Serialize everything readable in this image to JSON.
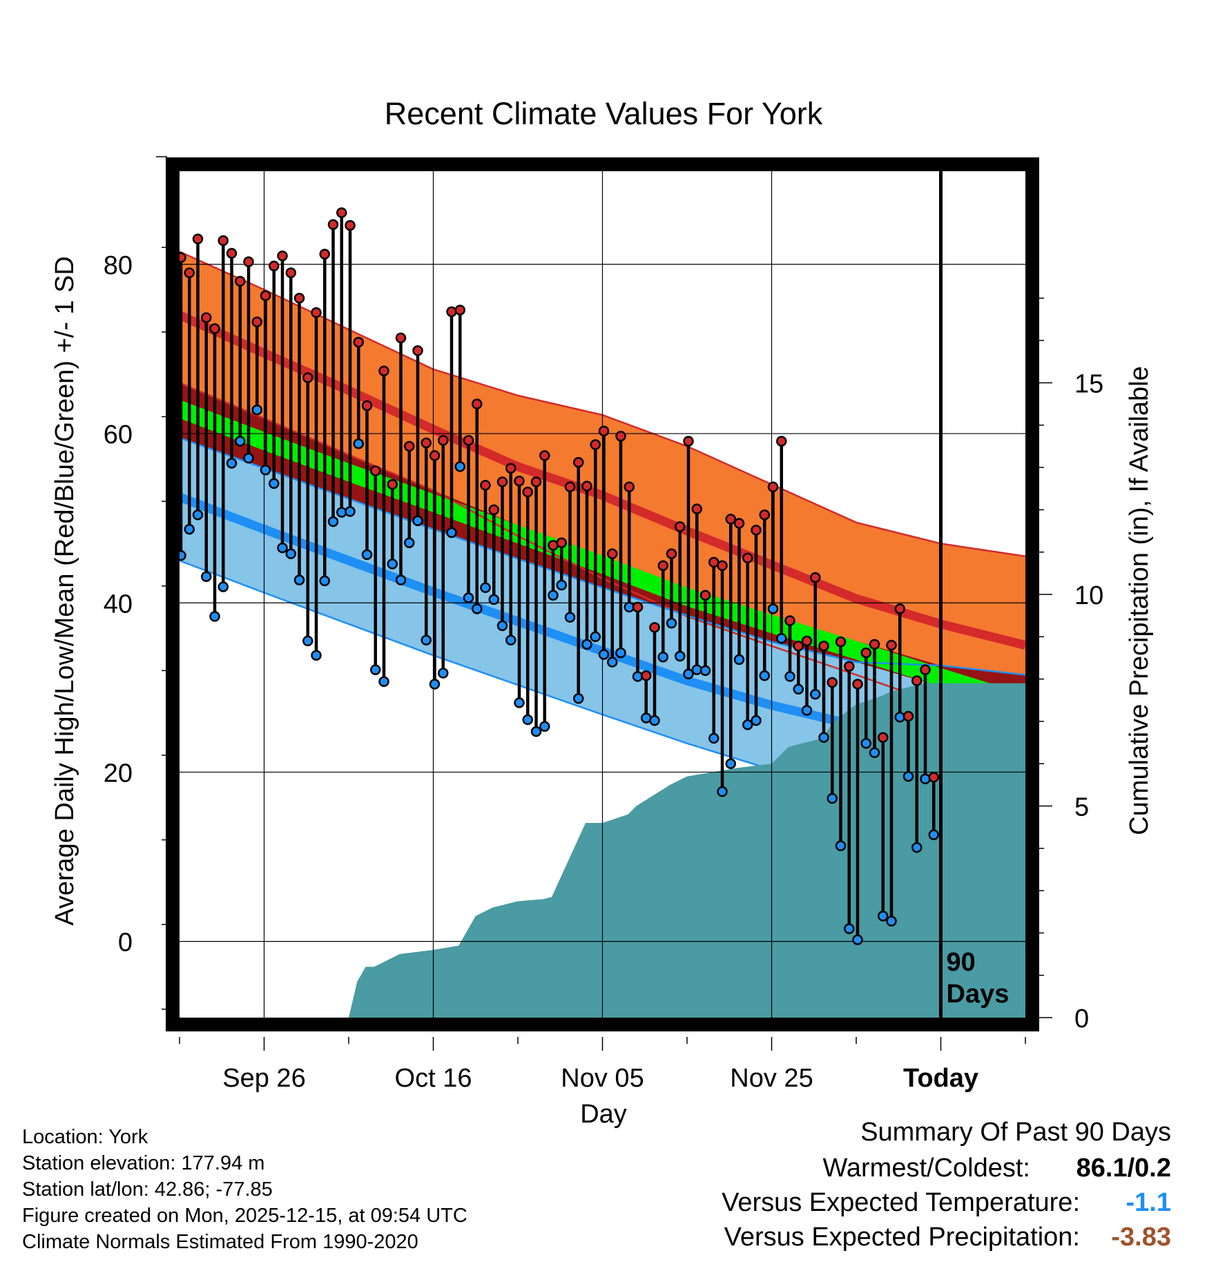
{
  "chart_data": {
    "type": "line",
    "title": "Recent Climate Values For York",
    "xlabel": "Day",
    "ylabel": "Average Daily High/Low/Mean (Red/Blue/Green) +/- 1 SD",
    "y2label": "Cumulative Precipitation (in), If Available",
    "x_range_days": [
      0,
      100
    ],
    "ylim": [
      -9,
      91
    ],
    "y_ticks": [
      0,
      20,
      40,
      60,
      80
    ],
    "y2lim": [
      0,
      20
    ],
    "y2_ticks": [
      0,
      5,
      10,
      15
    ],
    "x_ticks": [
      {
        "label": "Sep 26",
        "day": 10
      },
      {
        "label": "Oct 16",
        "day": 30
      },
      {
        "label": "Nov 05",
        "day": 50
      },
      {
        "label": "Nov 25",
        "day": 70
      },
      {
        "label": "Today",
        "day": 90
      }
    ],
    "today_day": 90,
    "today_label": [
      "90",
      "Days"
    ],
    "normal_high": {
      "days": [
        0,
        10,
        20,
        30,
        40,
        50,
        60,
        70,
        80,
        90,
        100
      ],
      "mean": [
        74,
        69.5,
        65.1,
        60.5,
        56.1,
        52.7,
        48.5,
        44.5,
        40.5,
        37.5,
        35
      ],
      "upper": [
        81.5,
        77,
        72.3,
        67.6,
        64.5,
        62.2,
        58.5,
        54,
        49.5,
        47,
        45.5
      ],
      "lower": [
        66,
        61.8,
        57.5,
        53.3,
        47.9,
        42.9,
        38.4,
        34.9,
        31.5,
        28,
        24.8
      ]
    },
    "normal_low": {
      "days": [
        0,
        10,
        20,
        30,
        40,
        50,
        60,
        70,
        80,
        90,
        100
      ],
      "mean": [
        52.5,
        48.7,
        45,
        41.3,
        37.8,
        34.3,
        30.8,
        27.9,
        25.5,
        23.2,
        21
      ],
      "upper": [
        59.5,
        55.9,
        52.3,
        48.7,
        45.2,
        41.8,
        38.5,
        35.4,
        33,
        32.6,
        31.5
      ],
      "lower": [
        45,
        41.2,
        37.5,
        33.8,
        30.3,
        26.8,
        23.4,
        20.3,
        17,
        13.9,
        10.7
      ]
    },
    "normal_mean": {
      "days": [
        0,
        10,
        20,
        30,
        40,
        50,
        60,
        70,
        80,
        90,
        100
      ],
      "upper": [
        64,
        60.2,
        56.5,
        52.9,
        49.2,
        45.6,
        41.8,
        38.6,
        35.5,
        32.3,
        29.2
      ],
      "lower": [
        61.8,
        58,
        54.3,
        50.7,
        47,
        43.4,
        39.6,
        36.4,
        33.3,
        30.1,
        27.4
      ]
    },
    "daily": [
      {
        "day": 0,
        "high": 80.8,
        "low": 45.6
      },
      {
        "day": 1,
        "high": 79,
        "low": 48.7
      },
      {
        "day": 2,
        "high": 83,
        "low": 50.4
      },
      {
        "day": 3,
        "high": 73.7,
        "low": 43.1
      },
      {
        "day": 4,
        "high": 72.4,
        "low": 38.4
      },
      {
        "day": 5,
        "high": 82.8,
        "low": 41.9
      },
      {
        "day": 6,
        "high": 81.3,
        "low": 56.5
      },
      {
        "day": 7,
        "high": 78,
        "low": 59.1
      },
      {
        "day": 8,
        "high": 80.3,
        "low": 57.1
      },
      {
        "day": 9,
        "high": 73.2,
        "low": 62.8
      },
      {
        "day": 10,
        "high": 76.3,
        "low": 55.7
      },
      {
        "day": 11,
        "high": 79.8,
        "low": 54.1
      },
      {
        "day": 12,
        "high": 81,
        "low": 46.5
      },
      {
        "day": 13,
        "high": 79,
        "low": 45.8
      },
      {
        "day": 14,
        "high": 76,
        "low": 42.7
      },
      {
        "day": 15,
        "high": 66.6,
        "low": 35.5
      },
      {
        "day": 16,
        "high": 74.3,
        "low": 33.8
      },
      {
        "day": 17,
        "high": 81.2,
        "low": 42.6
      },
      {
        "day": 18,
        "high": 84.7,
        "low": 49.6
      },
      {
        "day": 19,
        "high": 86.1,
        "low": 50.7
      },
      {
        "day": 20,
        "high": 84.6,
        "low": 50.8
      },
      {
        "day": 21,
        "high": 70.8,
        "low": 58.8
      },
      {
        "day": 22,
        "high": 63.3,
        "low": 45.7
      },
      {
        "day": 23,
        "high": 55.6,
        "low": 32.1
      },
      {
        "day": 24,
        "high": 67.4,
        "low": 30.7
      },
      {
        "day": 25,
        "high": 54,
        "low": 44.6
      },
      {
        "day": 26,
        "high": 71.3,
        "low": 42.7
      },
      {
        "day": 27,
        "high": 58.5,
        "low": 47.1
      },
      {
        "day": 28,
        "high": 69.8,
        "low": 49.7
      },
      {
        "day": 29,
        "high": 58.9,
        "low": 35.6
      },
      {
        "day": 30,
        "high": 57.4,
        "low": 30.4
      },
      {
        "day": 31,
        "high": 59.2,
        "low": 31.7
      },
      {
        "day": 32,
        "high": 74.4,
        "low": 48.3
      },
      {
        "day": 33,
        "high": 74.6,
        "low": 56.1
      },
      {
        "day": 34,
        "high": 59.2,
        "low": 40.6
      },
      {
        "day": 35,
        "high": 63.5,
        "low": 39.3
      },
      {
        "day": 36,
        "high": 53.9,
        "low": 41.8
      },
      {
        "day": 37,
        "high": 51,
        "low": 40.4
      },
      {
        "day": 38,
        "high": 54.3,
        "low": 37.3
      },
      {
        "day": 39,
        "high": 55.9,
        "low": 35.6
      },
      {
        "day": 40,
        "high": 54.4,
        "low": 28.2
      },
      {
        "day": 41,
        "high": 53.1,
        "low": 26.2
      },
      {
        "day": 42,
        "high": 54.3,
        "low": 24.8
      },
      {
        "day": 43,
        "high": 57.4,
        "low": 25.4
      },
      {
        "day": 44,
        "high": 46.8,
        "low": 40.9
      },
      {
        "day": 45,
        "high": 47.1,
        "low": 42.1
      },
      {
        "day": 46,
        "high": 53.7,
        "low": 38.3
      },
      {
        "day": 47,
        "high": 56.6,
        "low": 28.7
      },
      {
        "day": 48,
        "high": 53.8,
        "low": 35.1
      },
      {
        "day": 49,
        "high": 58.7,
        "low": 36
      },
      {
        "day": 50,
        "high": 60.3,
        "low": 33.9
      },
      {
        "day": 51,
        "high": 45.8,
        "low": 33
      },
      {
        "day": 52,
        "high": 59.7,
        "low": 34.1
      },
      {
        "day": 53,
        "high": 53.7,
        "low": 39.5
      },
      {
        "day": 54,
        "high": 39.5,
        "low": 31.3
      },
      {
        "day": 55,
        "high": 31.4,
        "low": 26.4
      },
      {
        "day": 56,
        "high": 37.1,
        "low": 26.1
      },
      {
        "day": 57,
        "high": 44.4,
        "low": 33.6
      },
      {
        "day": 58,
        "high": 45.8,
        "low": 37.6
      },
      {
        "day": 59,
        "high": 49,
        "low": 33.7
      },
      {
        "day": 60,
        "high": 59.1,
        "low": 31.6
      },
      {
        "day": 61,
        "high": 51.1,
        "low": 32.1
      },
      {
        "day": 62,
        "high": 40.9,
        "low": 32
      },
      {
        "day": 63,
        "high": 44.8,
        "low": 24
      },
      {
        "day": 64,
        "high": 44.4,
        "low": 17.7
      },
      {
        "day": 65,
        "high": 49.9,
        "low": 21
      },
      {
        "day": 66,
        "high": 49.4,
        "low": 33.3
      },
      {
        "day": 67,
        "high": 45.3,
        "low": 25.6
      },
      {
        "day": 68,
        "high": 48.6,
        "low": 26.1
      },
      {
        "day": 69,
        "high": 50.4,
        "low": 31.4
      },
      {
        "day": 70,
        "high": 53.7,
        "low": 39.3
      },
      {
        "day": 71,
        "high": 59.1,
        "low": 35.8
      },
      {
        "day": 72,
        "high": 37.9,
        "low": 31.3
      },
      {
        "day": 73,
        "high": 34.9,
        "low": 29.8
      },
      {
        "day": 74,
        "high": 35.5,
        "low": 27.3
      },
      {
        "day": 75,
        "high": 43,
        "low": 29.2
      },
      {
        "day": 76,
        "high": 34.9,
        "low": 24.1
      },
      {
        "day": 77,
        "high": 30.6,
        "low": 16.9
      },
      {
        "day": 78,
        "high": 35.4,
        "low": 11.3
      },
      {
        "day": 79,
        "high": 32.5,
        "low": 1.5
      },
      {
        "day": 80,
        "high": 30.4,
        "low": 0.2
      },
      {
        "day": 81,
        "high": 34.1,
        "low": 23.4
      },
      {
        "day": 82,
        "high": 35.1,
        "low": 22.3
      },
      {
        "day": 83,
        "high": 24.1,
        "low": 3
      },
      {
        "day": 84,
        "high": 35,
        "low": 2.4
      },
      {
        "day": 85,
        "high": 39.3,
        "low": 26.5
      },
      {
        "day": 86,
        "high": 26.6,
        "low": 19.5
      },
      {
        "day": 87,
        "high": 30.8,
        "low": 11.1
      },
      {
        "day": 88,
        "high": 32.1,
        "low": 19.2
      },
      {
        "day": 89,
        "high": 19.4,
        "low": 12.6
      }
    ],
    "precip_cumulative": {
      "days": [
        0,
        20,
        21,
        22,
        23,
        25,
        26,
        30,
        33,
        35,
        37,
        40,
        43,
        44,
        48,
        50,
        53,
        54,
        58,
        60,
        66,
        70,
        72,
        74,
        76,
        77,
        78,
        80,
        83,
        84,
        88,
        90,
        100
      ],
      "values": [
        0,
        0,
        0.85,
        1.2,
        1.2,
        1.4,
        1.5,
        1.6,
        1.7,
        2.4,
        2.6,
        2.75,
        2.8,
        2.85,
        4.6,
        4.6,
        4.8,
        5,
        5.5,
        5.7,
        5.9,
        6.0,
        6.4,
        6.5,
        6.6,
        6.9,
        7.1,
        7.4,
        7.6,
        7.7,
        7.9,
        7.9,
        7.9
      ]
    },
    "colors": {
      "high_band": "#f47a30",
      "high_mean": "#d42a2a",
      "low_band": "#86c4e8",
      "low_mean": "#1e8ff5",
      "mean_band": "#00ee00",
      "overlap": "#961414",
      "precip": "#4a9ba3",
      "high_marker": "#d42a2a",
      "low_marker": "#1e8ff5"
    }
  },
  "footer": {
    "location": "Location: York",
    "elevation": "Station elevation: 177.94 m",
    "latlon": "Station lat/lon: 42.86; -77.85",
    "created": "Figure created on Mon, 2025-12-15, at 09:54 UTC",
    "normals": "Climate Normals Estimated From 1990-2020"
  },
  "summary": {
    "heading": "Summary Of Past 90 Days",
    "warm_cold_label": "Warmest/Coldest:",
    "warm_cold_value": "86.1/0.2",
    "temp_label": "Versus Expected Temperature:",
    "temp_value": "-1.1",
    "temp_color": "#1e8ff5",
    "precip_label": "Versus Expected Precipitation:",
    "precip_value": "-3.83",
    "precip_color": "#a0522d"
  }
}
